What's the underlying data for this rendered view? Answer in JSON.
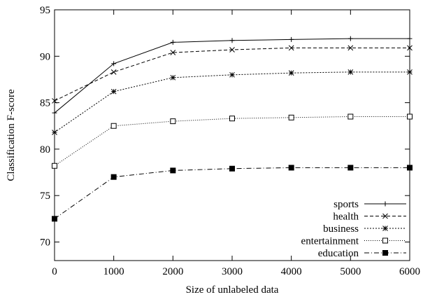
{
  "chart_data": {
    "type": "line",
    "title": "",
    "xlabel": "Size of unlabeled data",
    "ylabel": "Classification F-score",
    "x": [
      0,
      1000,
      2000,
      3000,
      4000,
      5000,
      6000
    ],
    "xlim": [
      0,
      6000
    ],
    "ylim": [
      68,
      95
    ],
    "xticks": [
      "0",
      "1000",
      "2000",
      "3000",
      "4000",
      "5000",
      "6000"
    ],
    "yticks": [
      "70",
      "75",
      "80",
      "85",
      "90",
      "95"
    ],
    "grid": false,
    "legend_position": "bottom-right",
    "series": [
      {
        "name": "sports",
        "marker": "plus",
        "dash": "solid",
        "values": [
          83.9,
          89.2,
          91.5,
          91.7,
          91.8,
          91.9,
          91.9
        ]
      },
      {
        "name": "health",
        "marker": "cross",
        "dash": "dashed",
        "values": [
          85.2,
          88.3,
          90.4,
          90.7,
          90.9,
          90.9,
          90.9
        ]
      },
      {
        "name": "business",
        "marker": "star",
        "dash": "dotted",
        "values": [
          81.8,
          86.2,
          87.7,
          88.0,
          88.2,
          88.3,
          88.3
        ]
      },
      {
        "name": "entertainment",
        "marker": "open-square",
        "dash": "fine-dotted",
        "values": [
          78.2,
          82.5,
          83.0,
          83.3,
          83.4,
          83.5,
          83.5
        ]
      },
      {
        "name": "education",
        "marker": "filled-square",
        "dash": "dash-dot",
        "values": [
          72.5,
          77.0,
          77.7,
          77.9,
          78.0,
          78.0,
          78.0
        ]
      }
    ]
  }
}
